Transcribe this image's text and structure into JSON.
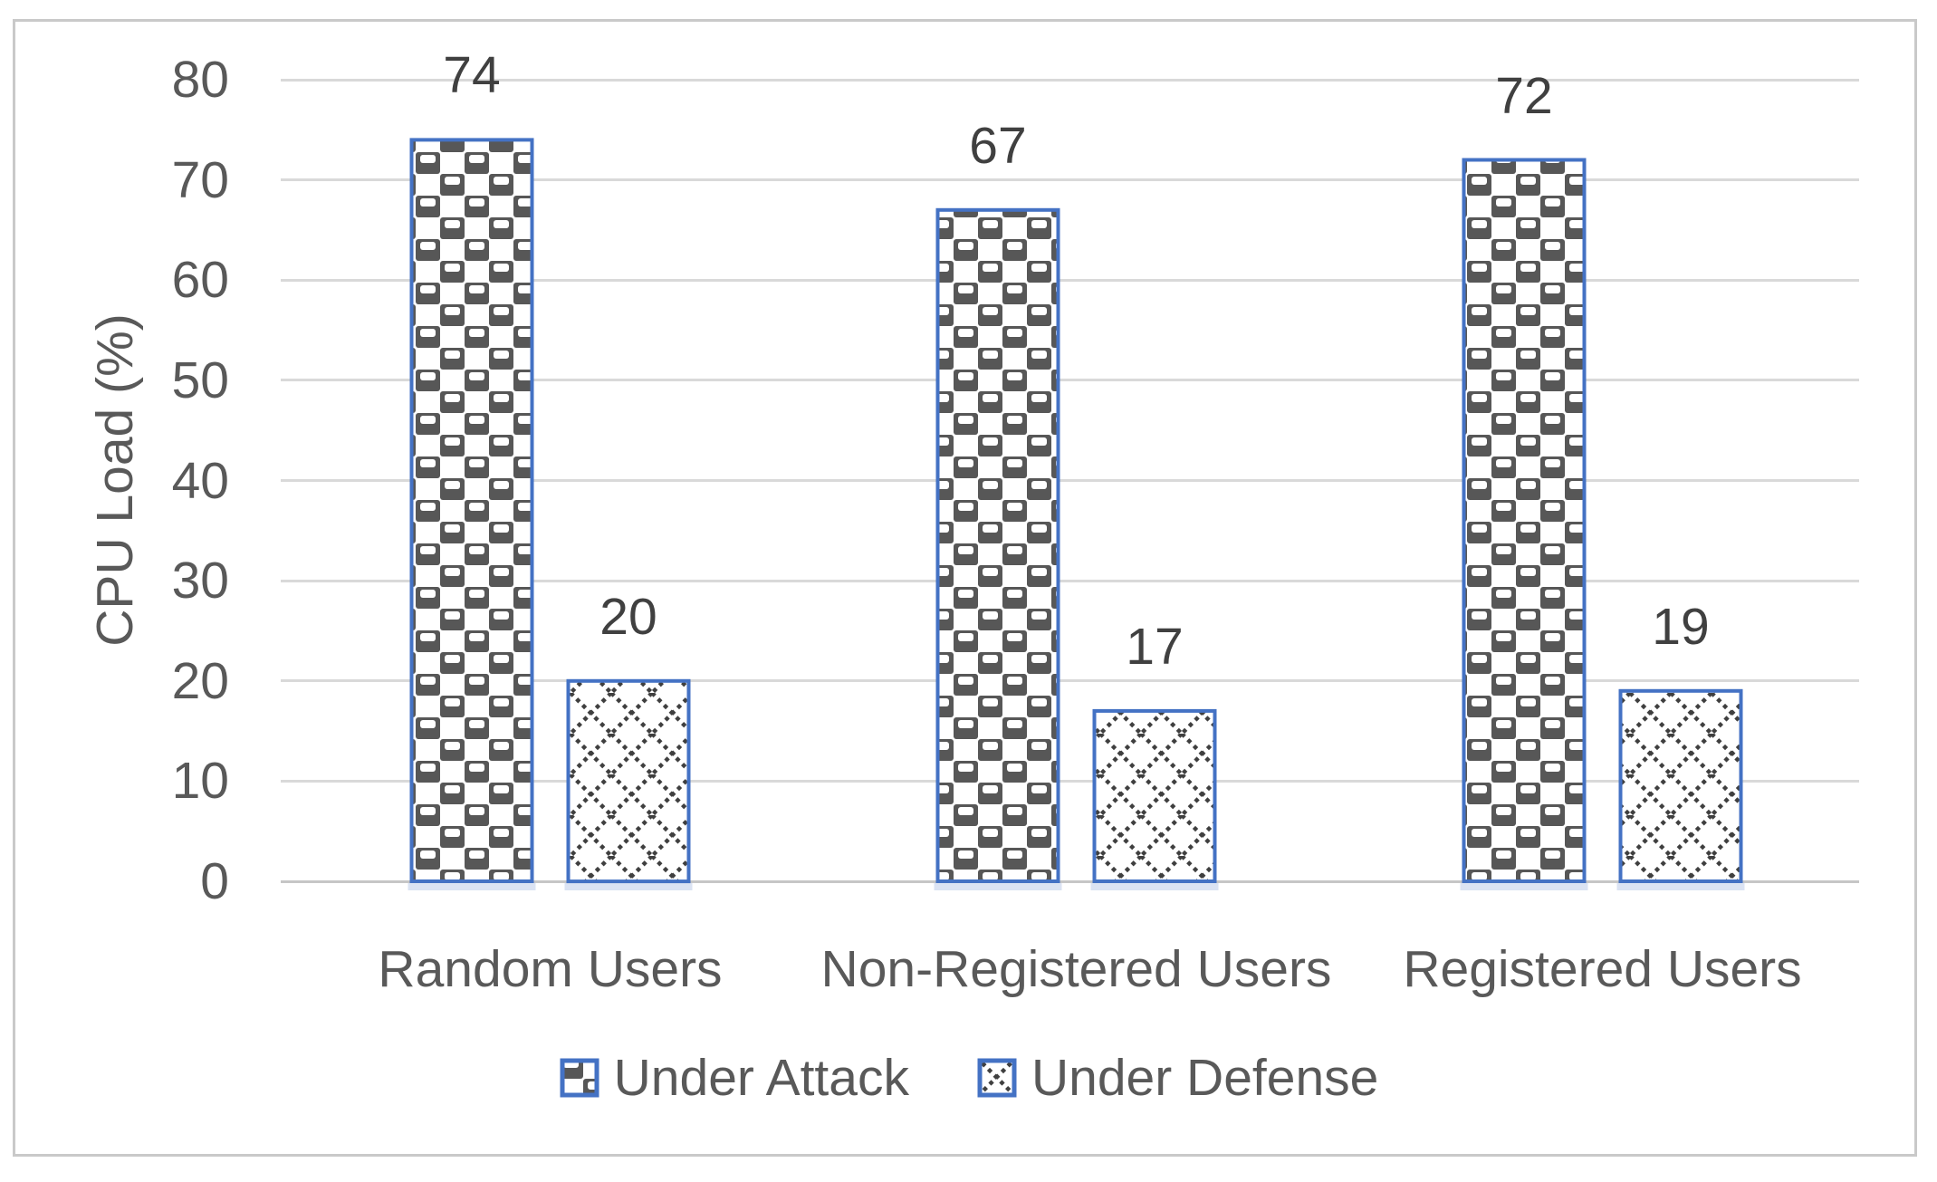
{
  "chart_data": {
    "type": "bar",
    "title": "",
    "categories": [
      "Random Users",
      "Non-Registered Users",
      "Registered Users"
    ],
    "series": [
      {
        "name": "Under Attack",
        "values": [
          74,
          67,
          72
        ],
        "pattern": "checker-sphere"
      },
      {
        "name": "Under Defense",
        "values": [
          20,
          17,
          19
        ],
        "pattern": "dotted-diamond"
      }
    ],
    "xlabel": "",
    "ylabel": "CPU Load (%)",
    "ylim": [
      0,
      80
    ],
    "ytick_step": 10,
    "yticks": [
      0,
      10,
      20,
      30,
      40,
      50,
      60,
      70,
      80
    ],
    "grid": "horizontal",
    "data_labels": true,
    "legend_position": "bottom",
    "colors": {
      "bar_border": "#4472C4",
      "pattern_dark": "#575757",
      "pattern_dot": "#3F3F3F",
      "gridline": "#D9D9D9",
      "axis_line": "#C6C6C6",
      "tick_text": "#595959",
      "data_label_text": "#404040",
      "frame_border": "#C9C9C9",
      "shadow": "#DBE3F3"
    }
  }
}
